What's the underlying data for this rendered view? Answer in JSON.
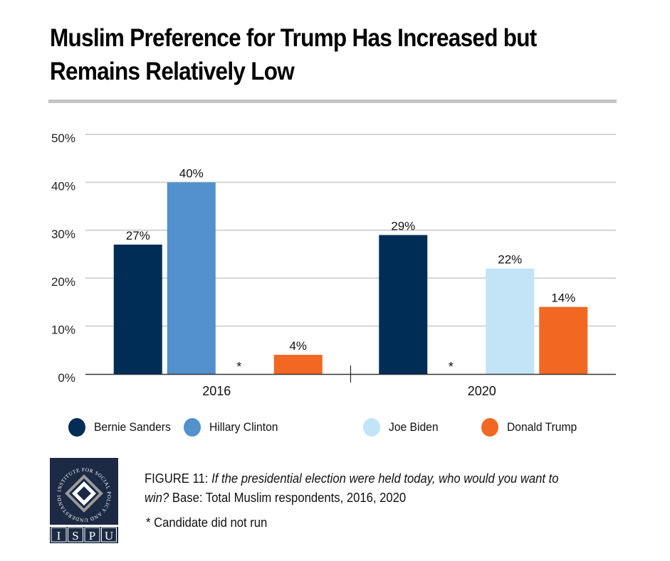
{
  "title": "Muslim Preference for Trump Has Increased but Remains Relatively Low",
  "chart_data": {
    "type": "bar",
    "title": "Muslim Preference for Trump Has Increased but Remains Relatively Low",
    "xlabel": "",
    "ylabel": "",
    "categories": [
      "2016",
      "2020"
    ],
    "ylim": [
      0,
      50
    ],
    "yticks": [
      0,
      10,
      20,
      30,
      40,
      50
    ],
    "ytick_labels": [
      "0%",
      "10%",
      "20%",
      "30%",
      "40%",
      "50%"
    ],
    "grid": true,
    "legend_position": "bottom",
    "series": [
      {
        "name": "Bernie Sanders",
        "color": "#002d56",
        "values": [
          27,
          29
        ],
        "labels": [
          "27%",
          "29%"
        ]
      },
      {
        "name": "Hillary Clinton",
        "color": "#5291cc",
        "values": [
          40,
          null
        ],
        "labels": [
          "40%",
          "*"
        ]
      },
      {
        "name": "Joe Biden",
        "color": "#c3e4f7",
        "values": [
          null,
          22
        ],
        "labels": [
          "*",
          "22%"
        ]
      },
      {
        "name": "Donald Trump",
        "color": "#f26722",
        "values": [
          4,
          14
        ],
        "labels": [
          "4%",
          "14%"
        ]
      }
    ],
    "annotations": [
      "* Candidate did not run"
    ]
  },
  "caption": {
    "figure_label": "FIGURE 11",
    "question": "If the presidential election were held today, who would you want to win?",
    "base": "Base: Total Muslim respondents, 2016, 2020"
  },
  "footnote": "* Candidate did not run",
  "logo": {
    "ring_text": "INSTITUTE FOR SOCIAL POLICY AND UNDERSTANDING",
    "letters": [
      "I",
      "S",
      "P",
      "U"
    ]
  }
}
